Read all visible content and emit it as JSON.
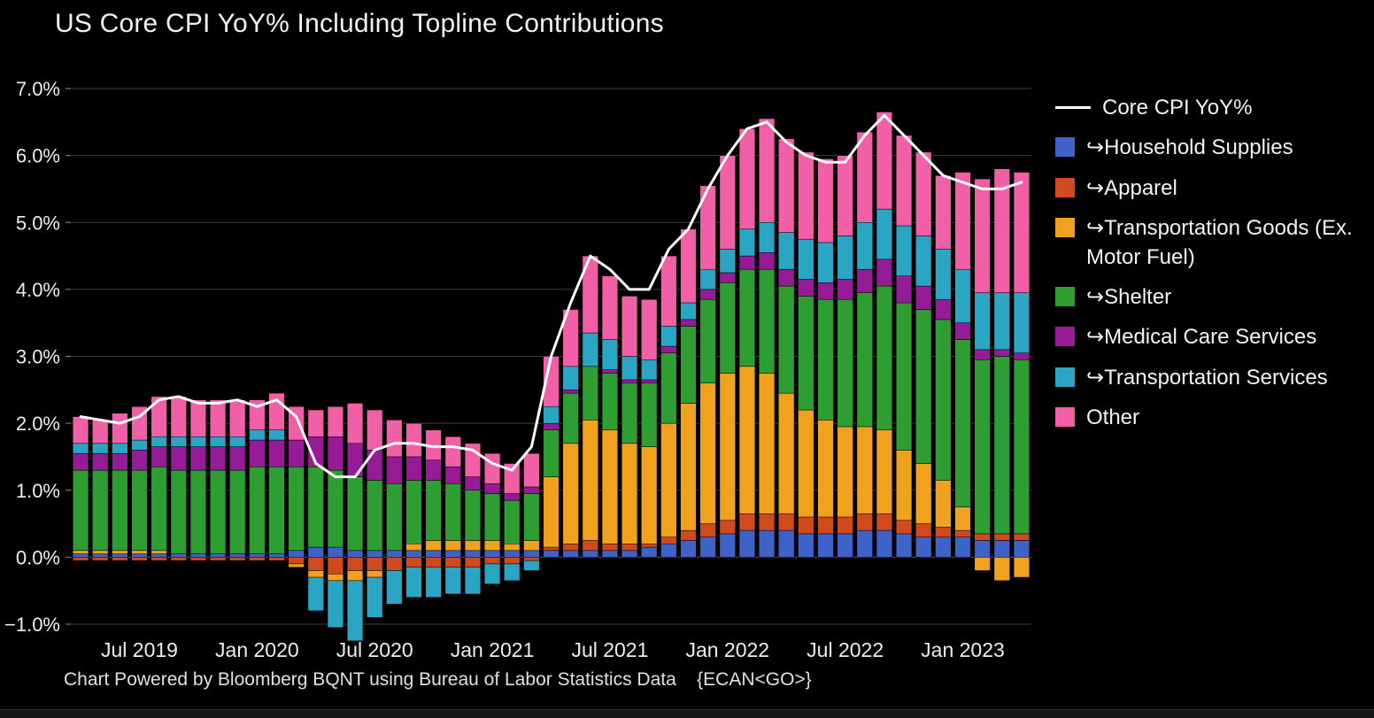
{
  "chart_data": {
    "type": "stacked-bar-with-line",
    "title": "US Core CPI YoY% Including Topline Contributions",
    "footer": "Chart Powered by Bloomberg BQNT using Bureau of Labor Statistics Data    {ECAN<GO>}",
    "ylim": [
      -1.35,
      7.35
    ],
    "grid": true,
    "legend_position": "right",
    "colors": {
      "background": "#000000",
      "grid": "#3f3f3f",
      "grid_zero": "#5a5a5a",
      "tick": "#8a8a8a",
      "axis_text": "#ededed",
      "title_text": "#f2f2f2",
      "footer_text": "#e0e0e0",
      "legend_text": "#f2f2f2"
    },
    "y_ticks": [
      {
        "value": 7,
        "label": "7.0%"
      },
      {
        "value": 6,
        "label": "6.0%"
      },
      {
        "value": 5,
        "label": "5.0%"
      },
      {
        "value": 4,
        "label": "4.0%"
      },
      {
        "value": 3,
        "label": "3.0%"
      },
      {
        "value": 2,
        "label": "2.0%"
      },
      {
        "value": 1,
        "label": "1.0%"
      },
      {
        "value": 0,
        "label": "0.0%"
      },
      {
        "value": -1,
        "label": "−1.0%"
      }
    ],
    "x_ticks": [
      {
        "index": 3,
        "label": "Jul 2019"
      },
      {
        "index": 9,
        "label": "Jan 2020"
      },
      {
        "index": 15,
        "label": "Jul 2020"
      },
      {
        "index": 21,
        "label": "Jan 2021"
      },
      {
        "index": 27,
        "label": "Jul 2021"
      },
      {
        "index": 33,
        "label": "Jan 2022"
      },
      {
        "index": 39,
        "label": "Jul 2022"
      },
      {
        "index": 45,
        "label": "Jan 2023"
      }
    ],
    "months": [
      "Apr 2019",
      "May 2019",
      "Jun 2019",
      "Jul 2019",
      "Aug 2019",
      "Sep 2019",
      "Oct 2019",
      "Nov 2019",
      "Dec 2019",
      "Jan 2020",
      "Feb 2020",
      "Mar 2020",
      "Apr 2020",
      "May 2020",
      "Jun 2020",
      "Jul 2020",
      "Aug 2020",
      "Sep 2020",
      "Oct 2020",
      "Nov 2020",
      "Dec 2020",
      "Jan 2021",
      "Feb 2021",
      "Mar 2021",
      "Apr 2021",
      "May 2021",
      "Jun 2021",
      "Jul 2021",
      "Aug 2021",
      "Sep 2021",
      "Oct 2021",
      "Nov 2021",
      "Dec 2021",
      "Jan 2022",
      "Feb 2022",
      "Mar 2022",
      "Apr 2022",
      "May 2022",
      "Jun 2022",
      "Jul 2022",
      "Aug 2022",
      "Sep 2022",
      "Oct 2022",
      "Nov 2022",
      "Dec 2022",
      "Jan 2023",
      "Feb 2023",
      "Mar 2023",
      "Apr 2023"
    ],
    "line": {
      "name": "Core CPI YoY%",
      "color": "#ffffff",
      "values": [
        2.1,
        2.05,
        2.0,
        2.1,
        2.35,
        2.4,
        2.3,
        2.3,
        2.35,
        2.25,
        2.35,
        2.1,
        1.4,
        1.2,
        1.2,
        1.6,
        1.7,
        1.7,
        1.65,
        1.65,
        1.6,
        1.4,
        1.3,
        1.65,
        3.0,
        3.8,
        4.5,
        4.3,
        4.0,
        4.0,
        4.6,
        4.9,
        5.5,
        6.0,
        6.4,
        6.5,
        6.2,
        6.0,
        5.9,
        5.9,
        6.3,
        6.6,
        6.3,
        6.0,
        5.7,
        5.6,
        5.5,
        5.5,
        5.6
      ]
    },
    "series": [
      {
        "name": "Household Supplies",
        "legend_label": "↪Household Supplies",
        "color": "#3e63c8",
        "values": [
          0.05,
          0.05,
          0.05,
          0.05,
          0.05,
          0.05,
          0.05,
          0.05,
          0.05,
          0.05,
          0.05,
          0.1,
          0.15,
          0.15,
          0.1,
          0.1,
          0.1,
          0.1,
          0.1,
          0.1,
          0.1,
          0.1,
          0.1,
          0.1,
          0.1,
          0.1,
          0.1,
          0.1,
          0.1,
          0.15,
          0.2,
          0.25,
          0.3,
          0.35,
          0.4,
          0.4,
          0.4,
          0.35,
          0.35,
          0.35,
          0.4,
          0.4,
          0.35,
          0.3,
          0.3,
          0.3,
          0.25,
          0.25,
          0.25
        ]
      },
      {
        "name": "Apparel",
        "legend_label": "↪Apparel",
        "color": "#d04a1e",
        "values": [
          -0.05,
          -0.05,
          -0.05,
          -0.05,
          -0.05,
          -0.05,
          -0.05,
          -0.05,
          -0.05,
          -0.05,
          -0.05,
          -0.1,
          -0.2,
          -0.25,
          -0.2,
          -0.2,
          -0.2,
          -0.15,
          -0.15,
          -0.15,
          -0.15,
          -0.1,
          -0.1,
          -0.05,
          0.05,
          0.1,
          0.15,
          0.1,
          0.1,
          0.05,
          0.1,
          0.15,
          0.2,
          0.2,
          0.25,
          0.25,
          0.25,
          0.25,
          0.25,
          0.25,
          0.25,
          0.25,
          0.2,
          0.2,
          0.15,
          0.1,
          0.1,
          0.1,
          0.1
        ]
      },
      {
        "name": "Transportation Goods (Ex. Motor Fuel)",
        "legend_label": "↪Transportation Goods (Ex. Motor Fuel)",
        "color": "#f0a11d",
        "values": [
          0.05,
          0.05,
          0.05,
          0.05,
          0.05,
          0.0,
          0.0,
          0.0,
          0.0,
          0.0,
          0.0,
          -0.05,
          -0.1,
          -0.1,
          -0.15,
          -0.1,
          0.0,
          0.1,
          0.15,
          0.15,
          0.15,
          0.15,
          0.1,
          0.15,
          1.05,
          1.5,
          1.8,
          1.7,
          1.5,
          1.45,
          1.7,
          1.9,
          2.1,
          2.2,
          2.2,
          2.1,
          1.8,
          1.6,
          1.45,
          1.35,
          1.3,
          1.25,
          1.05,
          0.9,
          0.7,
          0.35,
          -0.2,
          -0.35,
          -0.3
        ]
      },
      {
        "name": "Shelter",
        "legend_label": "↪Shelter",
        "color": "#2f9e32",
        "values": [
          1.2,
          1.2,
          1.2,
          1.2,
          1.25,
          1.25,
          1.25,
          1.25,
          1.25,
          1.3,
          1.3,
          1.25,
          1.2,
          1.15,
          1.1,
          1.05,
          1.0,
          0.95,
          0.9,
          0.85,
          0.75,
          0.7,
          0.65,
          0.7,
          0.7,
          0.75,
          0.8,
          0.85,
          0.9,
          0.95,
          1.05,
          1.15,
          1.25,
          1.35,
          1.45,
          1.55,
          1.6,
          1.7,
          1.8,
          1.9,
          2.0,
          2.15,
          2.2,
          2.3,
          2.4,
          2.5,
          2.6,
          2.65,
          2.6
        ]
      },
      {
        "name": "Medical Care Services",
        "legend_label": "↪Medical Care Services",
        "color": "#961b96",
        "values": [
          0.25,
          0.25,
          0.25,
          0.3,
          0.3,
          0.35,
          0.35,
          0.35,
          0.35,
          0.4,
          0.4,
          0.4,
          0.45,
          0.5,
          0.5,
          0.45,
          0.4,
          0.35,
          0.3,
          0.25,
          0.2,
          0.15,
          0.1,
          0.1,
          0.1,
          0.05,
          0.0,
          0.05,
          0.05,
          0.05,
          0.1,
          0.1,
          0.15,
          0.15,
          0.2,
          0.25,
          0.25,
          0.25,
          0.25,
          0.3,
          0.35,
          0.4,
          0.4,
          0.35,
          0.3,
          0.25,
          0.15,
          0.1,
          0.1
        ]
      },
      {
        "name": "Transportation Services",
        "legend_label": "↪Transportation Services",
        "color": "#2aa6c4",
        "values": [
          0.15,
          0.15,
          0.15,
          0.15,
          0.15,
          0.15,
          0.15,
          0.15,
          0.15,
          0.15,
          0.15,
          0.0,
          -0.5,
          -0.7,
          -0.9,
          -0.6,
          -0.5,
          -0.45,
          -0.45,
          -0.4,
          -0.4,
          -0.3,
          -0.25,
          -0.15,
          0.25,
          0.35,
          0.5,
          0.45,
          0.35,
          0.3,
          0.3,
          0.25,
          0.3,
          0.35,
          0.4,
          0.45,
          0.55,
          0.6,
          0.6,
          0.65,
          0.7,
          0.75,
          0.75,
          0.75,
          0.75,
          0.8,
          0.85,
          0.85,
          0.9
        ]
      },
      {
        "name": "Other",
        "legend_label": "Other",
        "color": "#f160a6",
        "values": [
          0.4,
          0.35,
          0.45,
          0.5,
          0.6,
          0.6,
          0.55,
          0.55,
          0.55,
          0.45,
          0.55,
          0.5,
          0.4,
          0.45,
          0.6,
          0.6,
          0.55,
          0.5,
          0.45,
          0.45,
          0.5,
          0.45,
          0.45,
          0.5,
          0.75,
          0.85,
          1.15,
          0.95,
          0.9,
          0.9,
          1.05,
          1.1,
          1.25,
          1.4,
          1.5,
          1.55,
          1.4,
          1.3,
          1.25,
          1.2,
          1.35,
          1.45,
          1.35,
          1.25,
          1.1,
          1.45,
          1.7,
          1.85,
          1.8
        ]
      }
    ]
  }
}
